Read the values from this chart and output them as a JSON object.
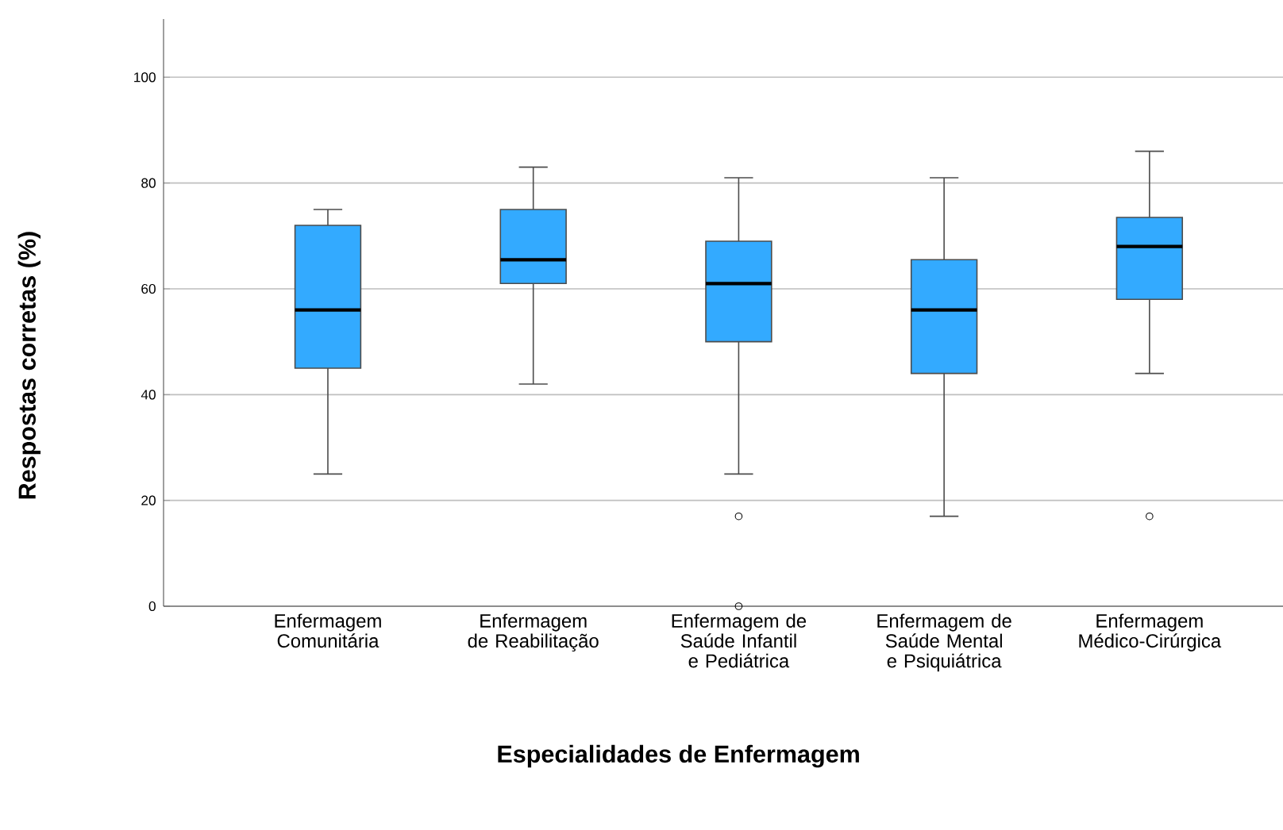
{
  "chart_data": {
    "type": "box",
    "xlabel": "Especialidades de Enfermagem",
    "ylabel": "Respostas corretas (%)",
    "categories": [
      "Enfermagem Comunitária",
      "Enfermagem de Reabilitação",
      "Enfermagem de Saúde Infantil e Pediátrica",
      "Enfermagem de Saúde Mental e Psiquiátrica",
      "Enfermagem Médico-Cirúrgica"
    ],
    "color": "#33aaff",
    "boxes": [
      {
        "low": 25,
        "q1": 45,
        "median": 56,
        "q3": 72,
        "high": 75
      },
      {
        "low": 42,
        "q1": 61,
        "median": 65.5,
        "q3": 75,
        "high": 83
      },
      {
        "low": 25,
        "q1": 50,
        "median": 61,
        "q3": 69,
        "high": 81,
        "outliers": [
          17,
          0
        ]
      },
      {
        "low": 17,
        "q1": 44,
        "median": 56,
        "q3": 65.5,
        "high": 81
      },
      {
        "low": 44,
        "q1": 58,
        "median": 68,
        "q3": 73.5,
        "high": 86,
        "outliers": [
          17
        ]
      }
    ],
    "ylim": [
      0,
      111
    ],
    "yticks": [
      0,
      20,
      40,
      60,
      80,
      100
    ],
    "grid": "y"
  }
}
